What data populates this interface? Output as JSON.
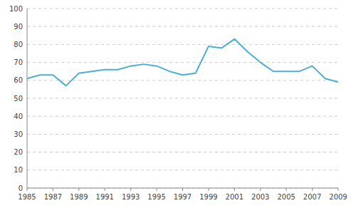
{
  "chart_data": {
    "type": "line",
    "x": [
      1985,
      1986,
      1987,
      1988,
      1989,
      1990,
      1991,
      1992,
      1993,
      1994,
      1995,
      1996,
      1997,
      1998,
      1999,
      2000,
      2001,
      2002,
      2003,
      2004,
      2005,
      2006,
      2007,
      2008,
      2009
    ],
    "values": [
      61,
      63,
      63,
      57,
      64,
      65,
      66,
      66,
      68,
      69,
      68,
      65,
      63,
      64,
      79,
      78,
      83,
      76,
      70,
      65,
      65,
      65,
      68,
      61,
      59
    ],
    "color": "#4BAFD4",
    "xlim": [
      1985,
      2009
    ],
    "xticks": [
      1985,
      1987,
      1989,
      1991,
      1993,
      1995,
      1997,
      1999,
      2001,
      2003,
      2005,
      2007,
      2009
    ],
    "ylim": [
      0,
      100
    ],
    "yticks": [
      0,
      10,
      20,
      30,
      40,
      50,
      60,
      70,
      80,
      90,
      100
    ],
    "grid": true
  }
}
